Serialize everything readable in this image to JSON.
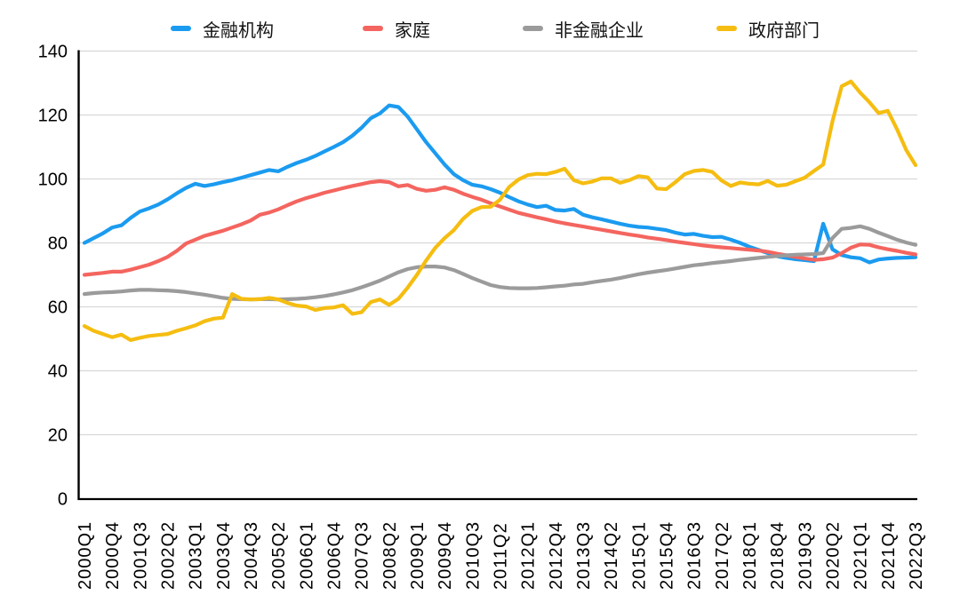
{
  "chart_data": {
    "type": "line",
    "title": "",
    "legend_position": "top",
    "grid": "horizontal",
    "ylim": [
      0,
      140
    ],
    "y_ticks": [
      0,
      20,
      40,
      60,
      80,
      100,
      120,
      140
    ],
    "x_tick_labels": [
      "2000Q1",
      "2000Q4",
      "2001Q3",
      "2002Q2",
      "2003Q1",
      "2003Q4",
      "2004Q3",
      "2005Q2",
      "2006Q1",
      "2006Q4",
      "2007Q3",
      "2008Q2",
      "2009Q1",
      "2009Q4",
      "2010Q3",
      "2011Q2",
      "2012Q1",
      "2012Q4",
      "2013Q3",
      "2014Q2",
      "2015Q1",
      "2015Q4",
      "2016Q3",
      "2017Q2",
      "2018Q1",
      "2018Q4",
      "2019Q3",
      "2020Q2",
      "2021Q1",
      "2021Q4",
      "2022Q3"
    ],
    "x": [
      "2000Q1",
      "2000Q2",
      "2000Q3",
      "2000Q4",
      "2001Q1",
      "2001Q2",
      "2001Q3",
      "2001Q4",
      "2002Q1",
      "2002Q2",
      "2002Q3",
      "2002Q4",
      "2003Q1",
      "2003Q2",
      "2003Q3",
      "2003Q4",
      "2004Q1",
      "2004Q2",
      "2004Q3",
      "2004Q4",
      "2005Q1",
      "2005Q2",
      "2005Q3",
      "2005Q4",
      "2006Q1",
      "2006Q2",
      "2006Q3",
      "2006Q4",
      "2007Q1",
      "2007Q2",
      "2007Q3",
      "2007Q4",
      "2008Q1",
      "2008Q2",
      "2008Q3",
      "2008Q4",
      "2009Q1",
      "2009Q2",
      "2009Q3",
      "2009Q4",
      "2010Q1",
      "2010Q2",
      "2010Q3",
      "2010Q4",
      "2011Q1",
      "2011Q2",
      "2011Q3",
      "2011Q4",
      "2012Q1",
      "2012Q2",
      "2012Q3",
      "2012Q4",
      "2013Q1",
      "2013Q2",
      "2013Q3",
      "2013Q4",
      "2014Q1",
      "2014Q2",
      "2014Q3",
      "2014Q4",
      "2015Q1",
      "2015Q2",
      "2015Q3",
      "2015Q4",
      "2016Q1",
      "2016Q2",
      "2016Q3",
      "2016Q4",
      "2017Q1",
      "2017Q2",
      "2017Q3",
      "2017Q4",
      "2018Q1",
      "2018Q2",
      "2018Q3",
      "2018Q4",
      "2019Q1",
      "2019Q2",
      "2019Q3",
      "2019Q4",
      "2020Q1",
      "2020Q2",
      "2020Q3",
      "2020Q4",
      "2021Q1",
      "2021Q2",
      "2021Q3",
      "2021Q4",
      "2022Q1",
      "2022Q2",
      "2022Q3"
    ],
    "series": [
      {
        "name": "金融机构",
        "slug": "financial-institutions",
        "color": "#1B9BF0",
        "values": [
          80,
          81.5,
          83,
          84.8,
          85.5,
          87.8,
          89.8,
          90.8,
          92,
          93.6,
          95.5,
          97.2,
          98.5,
          97.8,
          98.3,
          99,
          99.6,
          100.4,
          101.2,
          102,
          102.8,
          102.4,
          103.8,
          105,
          106,
          107.2,
          108.6,
          110,
          111.5,
          113.5,
          116,
          119,
          120.5,
          123,
          122.5,
          119.5,
          115.5,
          111.5,
          108,
          104.5,
          101.5,
          99.6,
          98.2,
          97.7,
          96.8,
          95.7,
          94.3,
          93,
          92,
          91.2,
          91.6,
          90.3,
          90.1,
          90.6,
          88.8,
          88,
          87.4,
          86.7,
          86,
          85.4,
          85,
          84.8,
          84.4,
          84,
          83.2,
          82.6,
          82.8,
          82.2,
          81.8,
          81.9,
          81,
          80,
          78.8,
          77.8,
          76.8,
          75.8,
          75.3,
          74.9,
          74.6,
          74.3,
          86,
          78,
          76.2,
          75.5,
          75.2,
          73.9,
          74.8,
          75.1,
          75.3,
          75.4,
          75.5
        ]
      },
      {
        "name": "家庭",
        "slug": "households",
        "color": "#F4655F",
        "values": [
          70,
          70.3,
          70.6,
          71,
          71,
          71.6,
          72.4,
          73.2,
          74.3,
          75.6,
          77.5,
          79.8,
          81,
          82.2,
          83,
          83.8,
          84.8,
          85.8,
          87,
          88.8,
          89.5,
          90.5,
          91.8,
          93,
          94,
          94.8,
          95.7,
          96.4,
          97.1,
          97.8,
          98.4,
          99,
          99.3,
          99,
          97.7,
          98.1,
          96.9,
          96.3,
          96.6,
          97.4,
          96.6,
          95.4,
          94.4,
          93.5,
          92.4,
          91.4,
          90.4,
          89.4,
          88.7,
          88,
          87.4,
          86.7,
          86.1,
          85.6,
          85.1,
          84.6,
          84.1,
          83.6,
          83.1,
          82.6,
          82.2,
          81.7,
          81.3,
          80.9,
          80.4,
          80,
          79.6,
          79.2,
          78.9,
          78.6,
          78.4,
          78.1,
          77.9,
          77.6,
          77.2,
          76.6,
          76.1,
          75.6,
          75.1,
          74.7,
          74.9,
          75.4,
          76.8,
          78.5,
          79.5,
          79.4,
          78.6,
          78,
          77.5,
          76.9,
          76.4
        ]
      },
      {
        "name": "非金融企业",
        "slug": "non-financial-enterprises",
        "color": "#9B9B9B",
        "values": [
          64,
          64.3,
          64.5,
          64.6,
          64.8,
          65.1,
          65.3,
          65.3,
          65.2,
          65.1,
          64.9,
          64.6,
          64.2,
          63.8,
          63.3,
          62.8,
          62.5,
          62.4,
          62.3,
          62.4,
          62.4,
          62.3,
          62.4,
          62.5,
          62.7,
          63,
          63.4,
          63.9,
          64.5,
          65.2,
          66.1,
          67.1,
          68.2,
          69.5,
          70.8,
          71.8,
          72.4,
          72.6,
          72.6,
          72.3,
          71.5,
          70.3,
          69,
          67.9,
          66.8,
          66.2,
          65.9,
          65.8,
          65.8,
          65.9,
          66.1,
          66.4,
          66.6,
          67,
          67.2,
          67.7,
          68.1,
          68.5,
          69,
          69.6,
          70.2,
          70.7,
          71.1,
          71.5,
          72,
          72.5,
          73,
          73.3,
          73.7,
          74,
          74.3,
          74.7,
          75,
          75.3,
          75.6,
          75.9,
          76.1,
          76.3,
          76.4,
          76.5,
          76.8,
          81.5,
          84.4,
          84.7,
          85.2,
          84.4,
          83.2,
          82.1,
          81,
          80.1,
          79.4
        ]
      },
      {
        "name": "政府部门",
        "slug": "government",
        "color": "#F5BD11",
        "values": [
          54,
          52.5,
          51.5,
          50.5,
          51.3,
          49.6,
          50.3,
          50.9,
          51.2,
          51.5,
          52.5,
          53.3,
          54.2,
          55.5,
          56.3,
          56.6,
          64,
          62.5,
          62.3,
          62.4,
          62.8,
          62.3,
          61.2,
          60.4,
          60.1,
          59,
          59.6,
          59.8,
          60.5,
          57.8,
          58.3,
          61.5,
          62.3,
          60.6,
          62.5,
          66,
          70,
          74.5,
          78.5,
          81.5,
          84,
          87.5,
          90,
          91.2,
          91.3,
          93.5,
          97.5,
          99.8,
          101.2,
          101.6,
          101.5,
          102.2,
          103.2,
          99.6,
          98.6,
          99.2,
          100.2,
          100.2,
          98.8,
          99.6,
          100.9,
          100.5,
          97,
          96.8,
          99,
          101.5,
          102.5,
          102.8,
          102.2,
          99.5,
          97.8,
          98.9,
          98.5,
          98.3,
          99.4,
          97.9,
          98.2,
          99.3,
          100.4,
          102.5,
          104.5,
          118,
          129,
          130.5,
          127,
          124,
          120.6,
          121.3,
          115.5,
          109,
          104.3
        ]
      }
    ]
  },
  "style": {
    "axis_color": "#000000",
    "grid_color": "#D8D8D8",
    "tick_text_color": "#000000",
    "legend_text_color": "#111111"
  }
}
